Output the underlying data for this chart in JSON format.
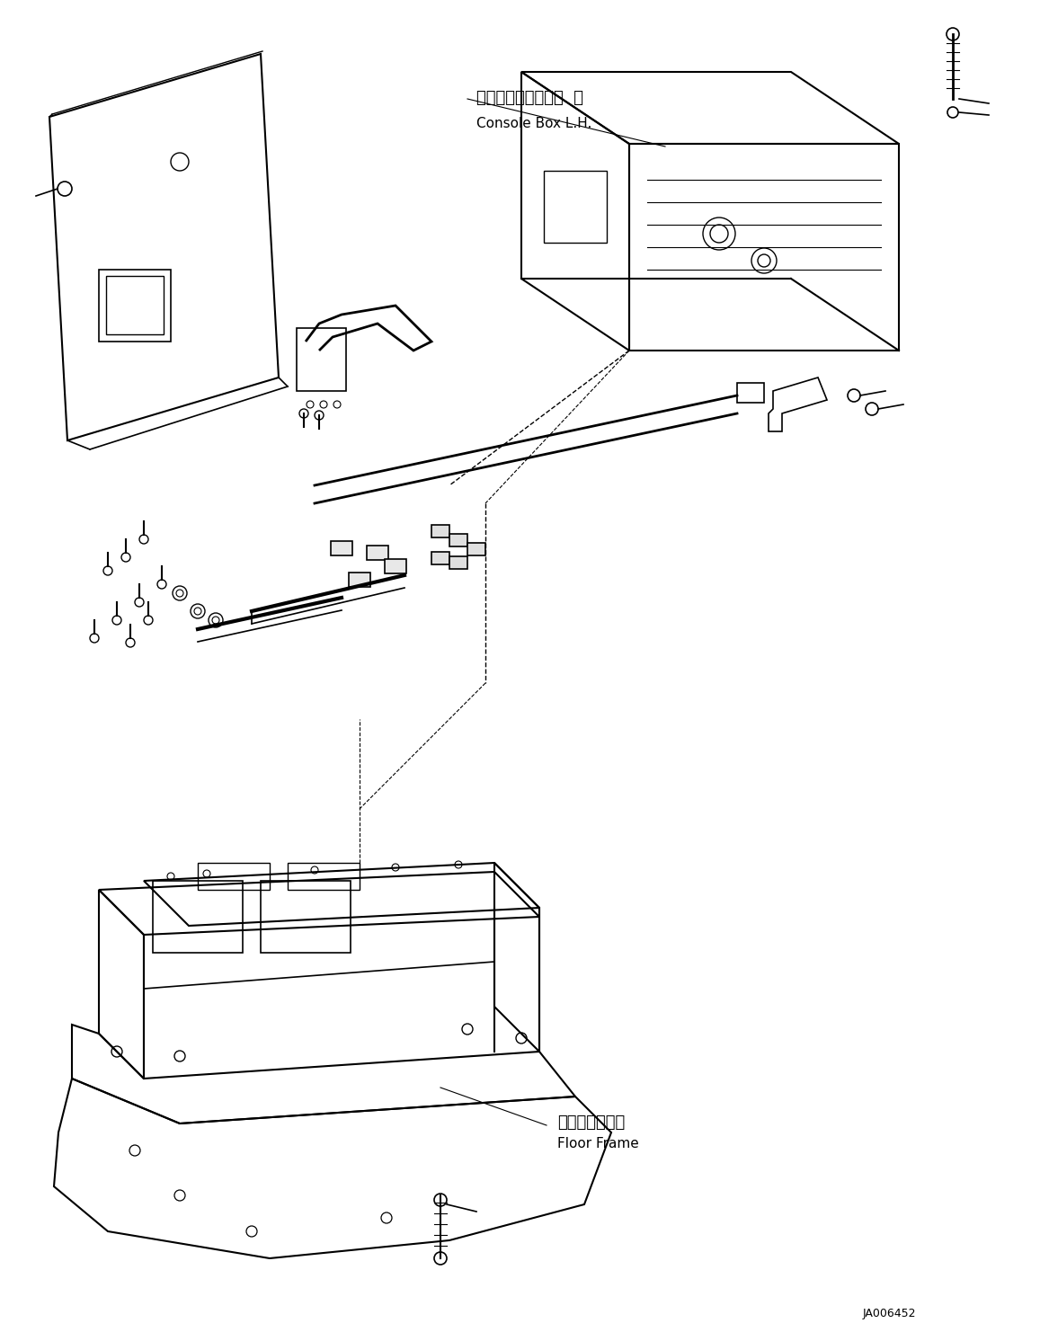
{
  "title": "",
  "bg_color": "#ffffff",
  "line_color": "#000000",
  "label1_jp": "コンソールボックス  左",
  "label1_en": "Console Box L.H.",
  "label2_jp": "フロアフレーム",
  "label2_en": "Floor Frame",
  "figure_id": "JA006452"
}
